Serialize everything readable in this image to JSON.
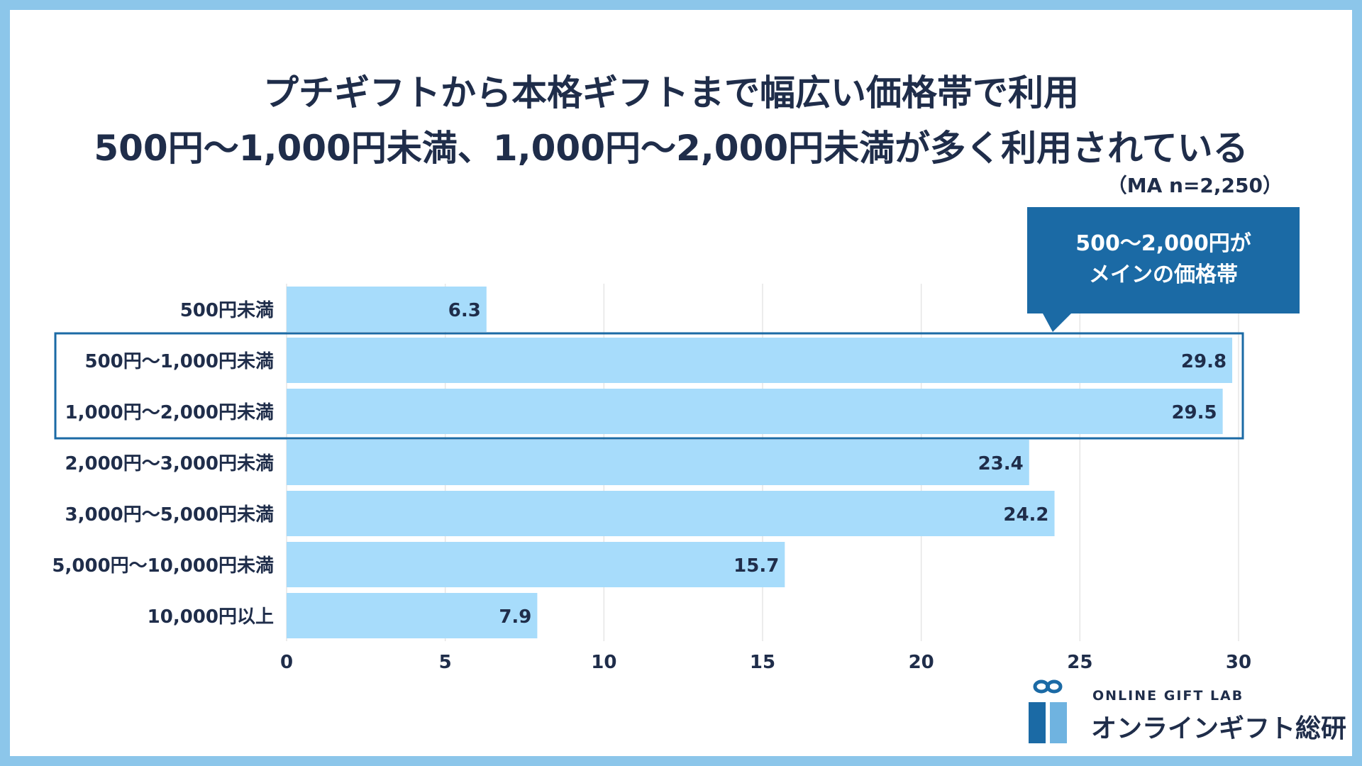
{
  "title": {
    "line1": "プチギフトから本格ギフトまで幅広い価格帯で利用",
    "line2": "500円〜1,000円未満、1,000円〜2,000円未満が多く利用されている"
  },
  "sample_note": "（MA n=2,250）",
  "callout": {
    "line1": "500〜2,000円が",
    "line2": "メインの価格帯"
  },
  "logo": {
    "en": "ONLINE GIFT LAB",
    "jp": "オンラインギフト総研"
  },
  "colors": {
    "bar": "#a7dcfb",
    "highlight": "#1b6aa5",
    "border": "#8cc6ea",
    "text": "#1f2d4a"
  },
  "chart_data": {
    "type": "bar",
    "orientation": "horizontal",
    "categories": [
      "500円未満",
      "500円〜1,000円未満",
      "1,000円〜2,000円未満",
      "2,000円〜3,000円未満",
      "3,000円〜5,000円未満",
      "5,000円〜10,000円未満",
      "10,000円以上"
    ],
    "values": [
      6.3,
      29.8,
      29.5,
      23.4,
      24.2,
      15.7,
      7.9
    ],
    "xlim": [
      0,
      30
    ],
    "xticks": [
      0,
      5,
      10,
      15,
      20,
      25,
      30
    ],
    "grid": true,
    "highlighted_categories": [
      "500円〜1,000円未満",
      "1,000円〜2,000円未満"
    ]
  }
}
